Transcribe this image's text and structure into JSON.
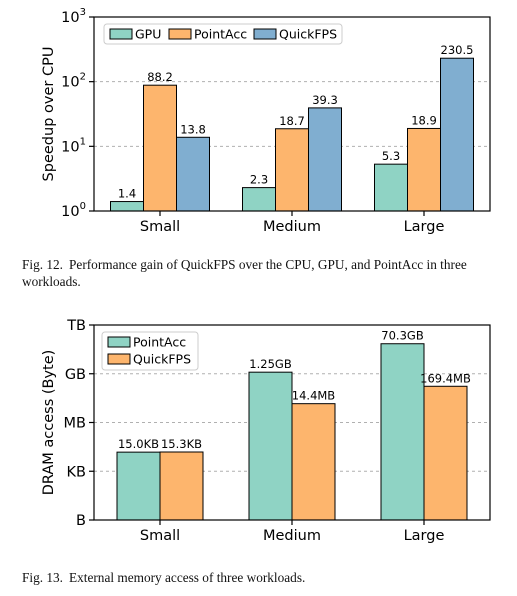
{
  "chart_data": [
    {
      "type": "bar",
      "ylabel": "Speedup over CPU",
      "yscale": "log",
      "ylim": [
        1,
        1000
      ],
      "yticks": [
        "10^0",
        "10^1",
        "10^2",
        "10^3"
      ],
      "grid": "horizontal dashed",
      "legend_position": "top-left",
      "categories": [
        "Small",
        "Medium",
        "Large"
      ],
      "series": [
        {
          "name": "GPU",
          "color": "#8fd3c4",
          "values": [
            1.4,
            2.3,
            5.3
          ],
          "labels": [
            "1.4",
            "2.3",
            "5.3"
          ]
        },
        {
          "name": "PointAcc",
          "color": "#fdb56d",
          "values": [
            88.2,
            18.7,
            18.9
          ],
          "labels": [
            "88.2",
            "18.7",
            "18.9"
          ]
        },
        {
          "name": "QuickFPS",
          "color": "#80aed0",
          "values": [
            13.8,
            39.3,
            230.5
          ],
          "labels": [
            "13.8",
            "39.3",
            "230.5"
          ]
        }
      ]
    },
    {
      "type": "bar",
      "ylabel": "DRAM access (Byte)",
      "yscale": "log",
      "yticks": [
        "B",
        "KB",
        "MB",
        "GB",
        "TB"
      ],
      "ylim_bytes": [
        1,
        1000000000000.0
      ],
      "grid": "horizontal dashed",
      "legend_position": "top-left",
      "categories": [
        "Small",
        "Medium",
        "Large"
      ],
      "series": [
        {
          "name": "PointAcc",
          "color": "#8fd3c4",
          "values_bytes": [
            15000,
            1250000000,
            70300000000
          ],
          "labels": [
            "15.0KB",
            "1.25GB",
            "70.3GB"
          ]
        },
        {
          "name": "QuickFPS",
          "color": "#fdb56d",
          "values_bytes": [
            15300,
            14400000,
            169400000
          ],
          "labels": [
            "15.3KB",
            "14.4MB",
            "169.4MB"
          ]
        }
      ]
    }
  ],
  "captions": {
    "fig12_number": "Fig. 12.",
    "fig12_text": "Performance gain of QuickFPS over the CPU, GPU, and PointAcc in three workloads.",
    "fig13_number": "Fig. 13.",
    "fig13_text": "External memory access of three workloads."
  }
}
